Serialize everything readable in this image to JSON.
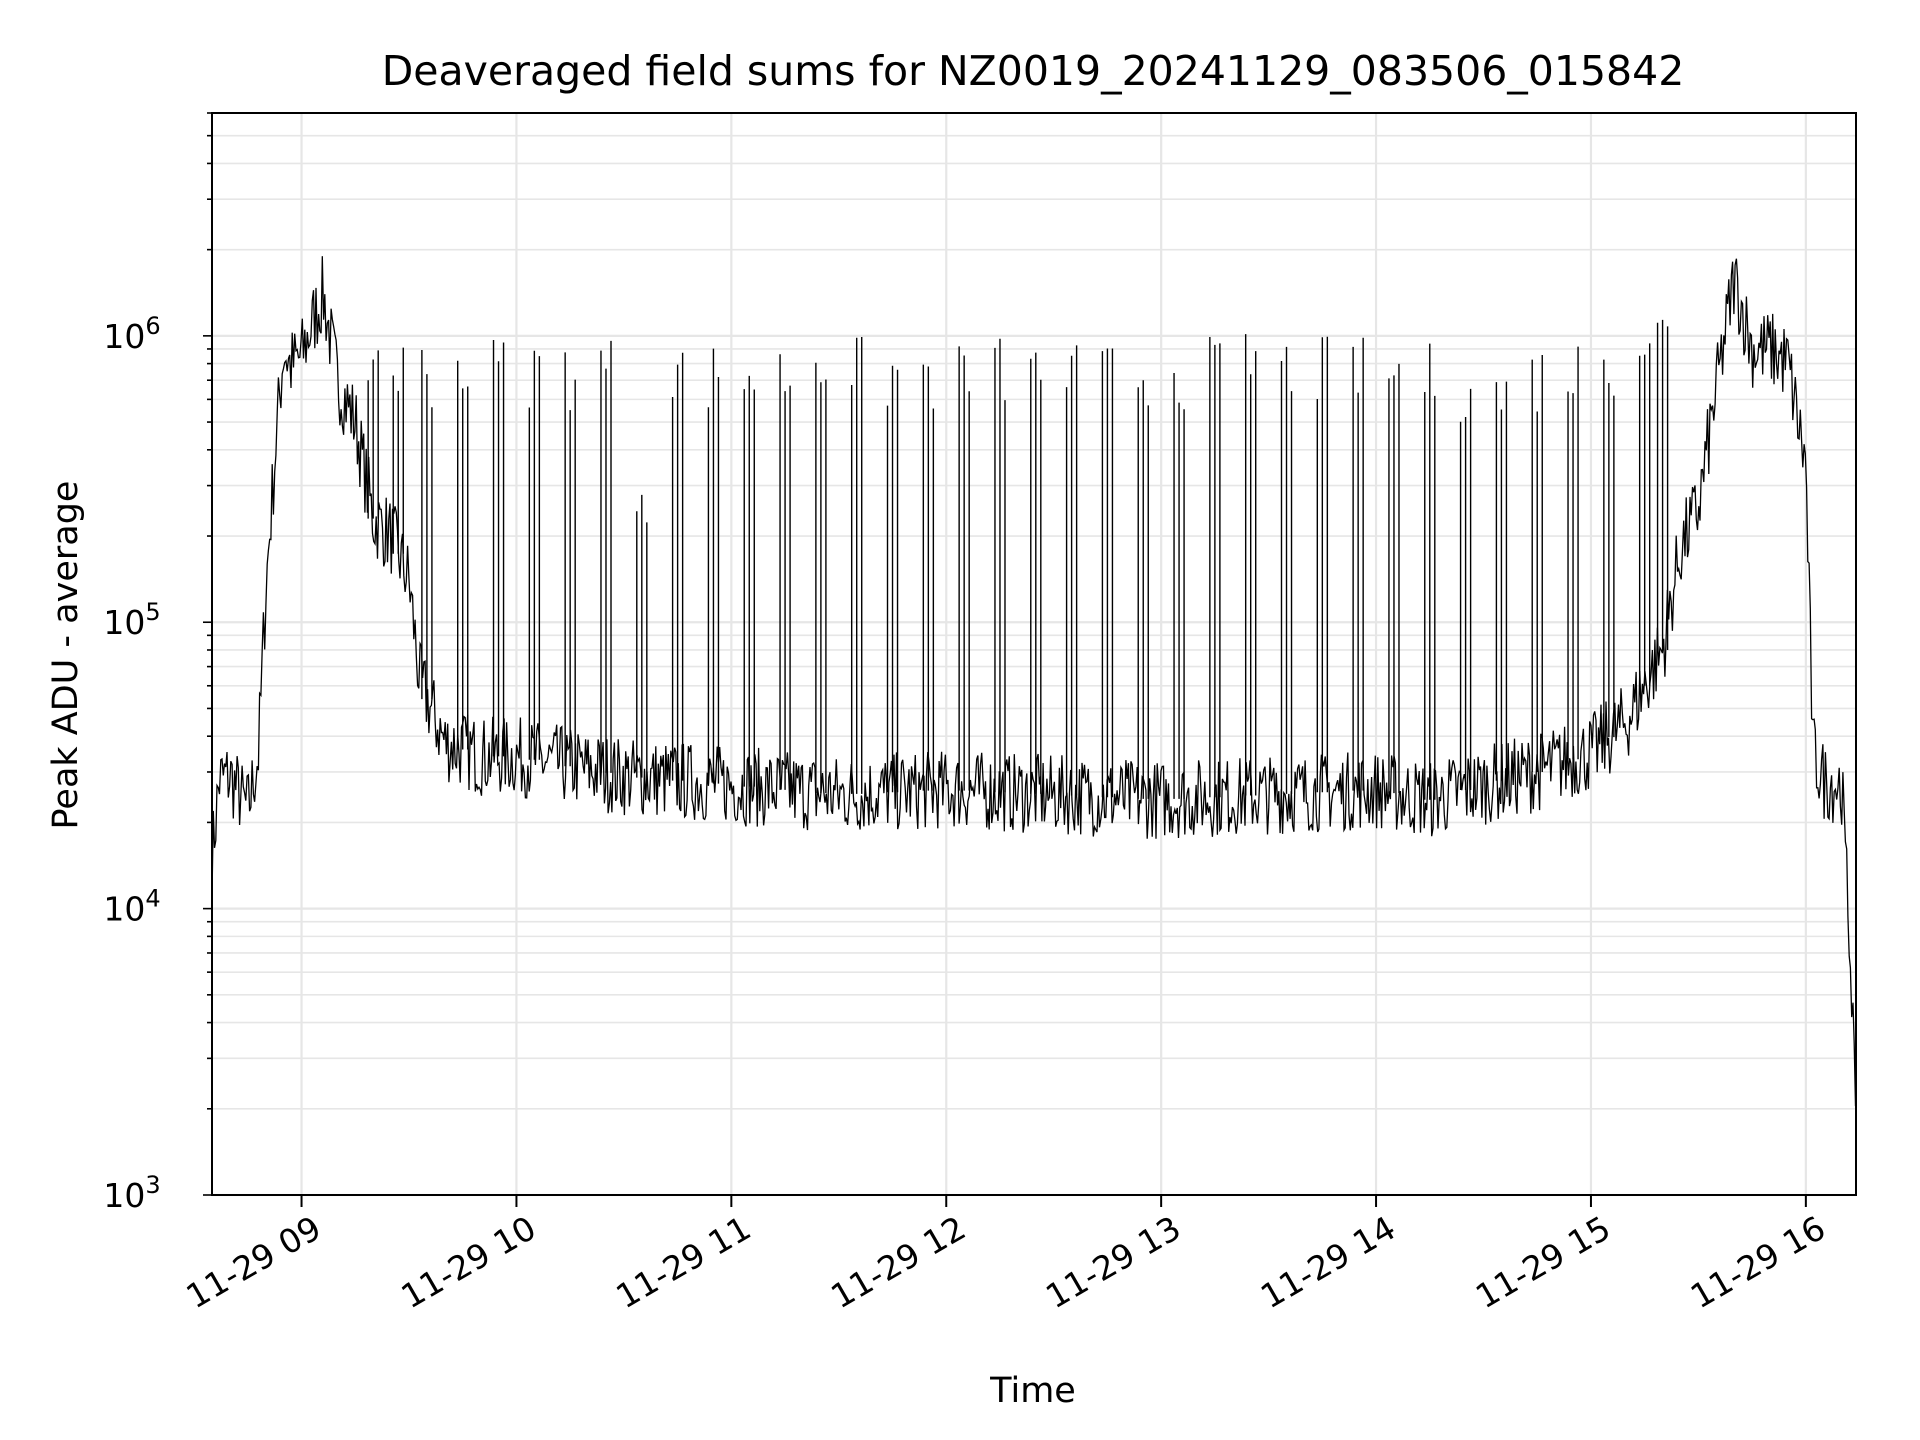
{
  "chart_data": {
    "type": "line",
    "title": "Deaveraged field sums for NZ0019_20241129_083506_015842",
    "xlabel": "Time",
    "ylabel": "Peak ADU - average",
    "x_range_hours": [
      "11-29 08:35",
      "11-29 16:14"
    ],
    "ylim": [
      1000,
      6000000
    ],
    "yscale": "log",
    "grid": true,
    "line_color": "#000000",
    "x_ticks": [
      "11-29 09",
      "11-29 10",
      "11-29 11",
      "11-29 12",
      "11-29 13",
      "11-29 14",
      "11-29 15",
      "11-29 16"
    ],
    "y_ticks": [
      {
        "base": "10",
        "exp": "3",
        "value": 1000
      },
      {
        "base": "10",
        "exp": "4",
        "value": 10000
      },
      {
        "base": "10",
        "exp": "5",
        "value": 100000
      },
      {
        "base": "10",
        "exp": "6",
        "value": 1000000
      }
    ],
    "series": [
      {
        "name": "",
        "x": [
          "08:35",
          "08:37",
          "08:40",
          "08:45",
          "08:48",
          "08:50",
          "08:53",
          "08:55",
          "08:57",
          "09:00",
          "09:03",
          "09:06",
          "09:10",
          "09:15",
          "09:20",
          "09:25",
          "09:30",
          "09:33",
          "09:40",
          "09:50",
          "10:00",
          "10:30",
          "11:00",
          "11:30",
          "12:00",
          "12:30",
          "13:00",
          "13:30",
          "14:00",
          "14:15",
          "14:30",
          "14:45",
          "15:00",
          "15:10",
          "15:20",
          "15:25",
          "15:30",
          "15:35",
          "15:40",
          "15:45",
          "15:50",
          "15:55",
          "16:00",
          "16:02",
          "16:05",
          "16:10",
          "16:13",
          "16:14"
        ],
        "y": [
          15000,
          28000,
          29000,
          22000,
          35000,
          130000,
          450000,
          900000,
          780000,
          850000,
          1100000,
          1400000,
          700000,
          500000,
          230000,
          200000,
          140000,
          62000,
          38000,
          34000,
          34000,
          29000,
          27000,
          25000,
          26000,
          25000,
          24000,
          25000,
          26000,
          24000,
          27000,
          30000,
          35000,
          45000,
          80000,
          180000,
          250000,
          650000,
          1600000,
          900000,
          900000,
          800000,
          350000,
          35000,
          28000,
          27000,
          5000,
          1200
        ],
        "spikes": [
          [
            "09:20",
            1100000
          ],
          [
            "09:27",
            1000000
          ],
          [
            "09:35",
            1000000
          ],
          [
            "09:45",
            1000000
          ],
          [
            "09:55",
            1000000
          ],
          [
            "10:05",
            1000000
          ],
          [
            "10:15",
            1000000
          ],
          [
            "10:25",
            1000000
          ],
          [
            "10:35",
            400000
          ],
          [
            "10:45",
            950000
          ],
          [
            "10:55",
            950000
          ],
          [
            "11:05",
            950000
          ],
          [
            "11:15",
            950000
          ],
          [
            "11:25",
            1100000
          ],
          [
            "11:35",
            1000000
          ],
          [
            "11:45",
            950000
          ],
          [
            "11:55",
            950000
          ],
          [
            "12:05",
            950000
          ],
          [
            "12:15",
            1000000
          ],
          [
            "12:25",
            950000
          ],
          [
            "12:35",
            950000
          ],
          [
            "12:45",
            950000
          ],
          [
            "12:55",
            950000
          ],
          [
            "13:05",
            1000000
          ],
          [
            "13:15",
            1000000
          ],
          [
            "13:25",
            1050000
          ],
          [
            "13:35",
            1000000
          ],
          [
            "13:45",
            1000000
          ],
          [
            "13:55",
            1000000
          ],
          [
            "14:05",
            950000
          ],
          [
            "14:15",
            950000
          ],
          [
            "14:25",
            900000
          ],
          [
            "14:35",
            800000
          ],
          [
            "14:45",
            950000
          ],
          [
            "14:55",
            1000000
          ],
          [
            "15:05",
            1100000
          ],
          [
            "15:15",
            1300000
          ],
          [
            "15:20",
            1300000
          ]
        ]
      }
    ]
  }
}
